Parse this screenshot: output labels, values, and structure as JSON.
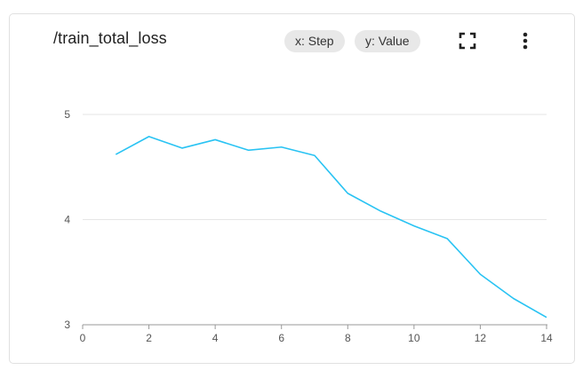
{
  "card": {
    "title": "/train_total_loss",
    "x_chip": "x: Step",
    "y_chip": "y: Value"
  },
  "icons": {
    "fullscreen": "fullscreen-icon",
    "more": "more-vert-icon"
  },
  "colors": {
    "line": "#29c3f3",
    "grid": "#e6e6e6",
    "axis": "#999999"
  },
  "chart_data": {
    "type": "line",
    "title": "/train_total_loss",
    "xlabel": "",
    "ylabel": "",
    "xlim": [
      0,
      14
    ],
    "ylim": [
      3,
      5
    ],
    "x_ticks": [
      0,
      2,
      4,
      6,
      8,
      10,
      12,
      14
    ],
    "y_ticks": [
      3,
      4,
      5
    ],
    "grid": true,
    "series": [
      {
        "x": [
          1,
          2,
          3,
          4,
          5,
          6,
          7,
          8,
          9,
          10,
          11,
          12,
          13,
          14
        ],
        "values": [
          4.62,
          4.79,
          4.68,
          4.76,
          4.66,
          4.69,
          4.61,
          4.25,
          4.08,
          3.94,
          3.82,
          3.48,
          3.25,
          3.07
        ]
      }
    ]
  }
}
